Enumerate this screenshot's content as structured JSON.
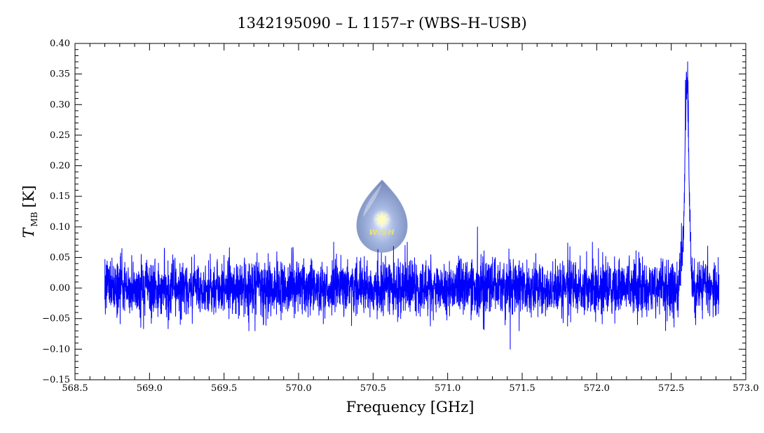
{
  "chart_data": {
    "type": "line",
    "title": "1342195090 – L 1157–r (WBS–H–USB)",
    "xlabel": "Frequency [GHz]",
    "ylabel": {
      "symbol": "T",
      "subscript": "MB",
      "unit": "[K]"
    },
    "xlim": [
      568.5,
      573.0
    ],
    "ylim": [
      -0.15,
      0.4
    ],
    "xticks": [
      "568.5",
      "569.0",
      "569.5",
      "570.0",
      "570.5",
      "571.0",
      "571.5",
      "572.0",
      "572.5",
      "573.0"
    ],
    "yticks": [
      "−0.15",
      "−0.10",
      "−0.05",
      "0.00",
      "0.05",
      "0.10",
      "0.15",
      "0.20",
      "0.25",
      "0.30",
      "0.35",
      "0.40"
    ],
    "grid": false,
    "series": [
      {
        "color": "#0000ff",
        "x_range": [
          568.7,
          572.82
        ],
        "baseline": 0.0,
        "noise_rms": 0.022,
        "peaks": [
          {
            "x": 572.61,
            "y": 0.37
          },
          {
            "x": 572.595,
            "y": 0.34
          },
          {
            "x": 571.42,
            "y": -0.1
          },
          {
            "x": 571.2,
            "y": 0.1
          }
        ]
      }
    ]
  },
  "logo": {
    "text": "WISH"
  }
}
